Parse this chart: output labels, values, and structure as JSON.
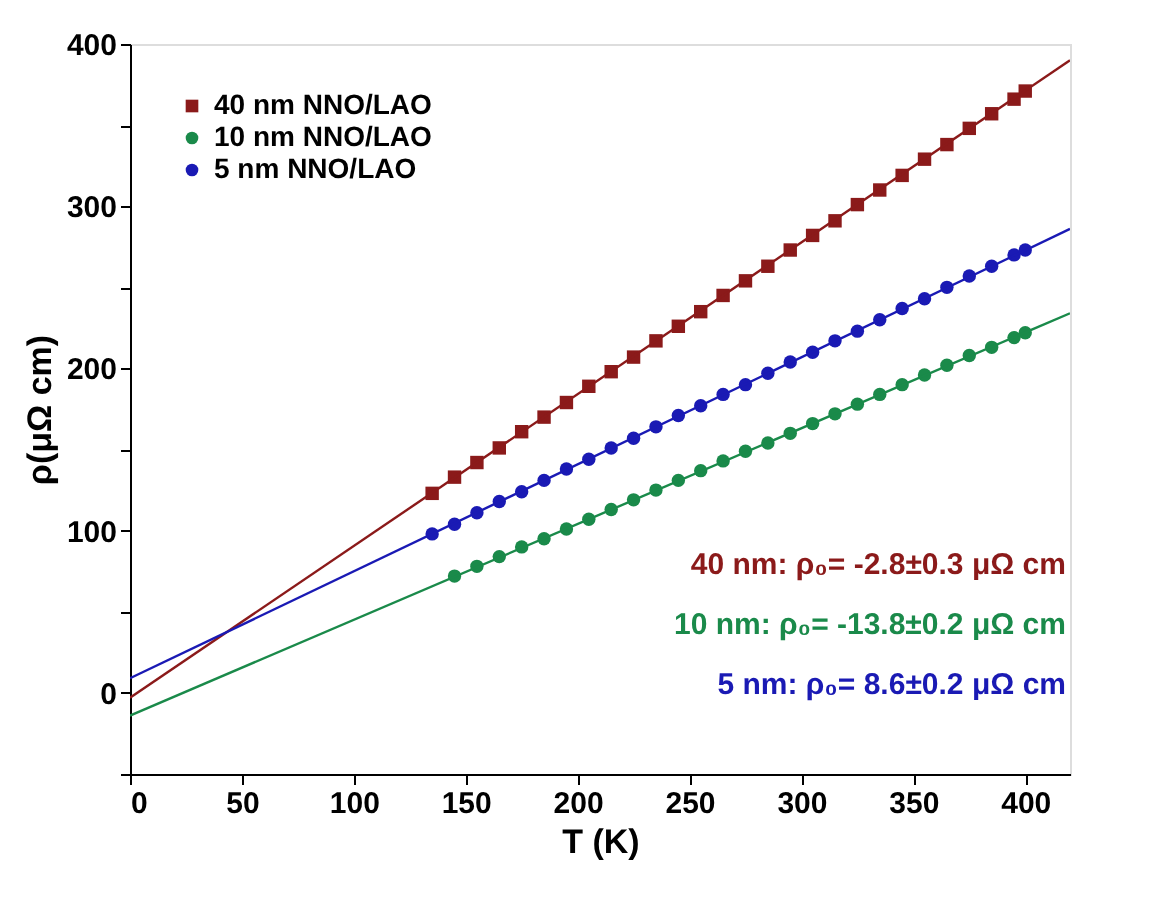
{
  "chart_data": {
    "type": "scatter",
    "xlabel": "T (K)",
    "ylabel": "ρ(μΩ cm)",
    "xlim": [
      0,
      420
    ],
    "ylim": [
      -50,
      400
    ],
    "xticks": [
      0,
      50,
      100,
      150,
      200,
      250,
      300,
      350,
      400
    ],
    "yticks": [
      {
        "value": -50,
        "label": null
      },
      0,
      {
        "value": 50,
        "label": null
      },
      100,
      {
        "value": 150,
        "label": null
      },
      200,
      {
        "value": 250,
        "label": null
      },
      300,
      {
        "value": 350,
        "label": null
      },
      400
    ],
    "grid": false,
    "legend": "top left",
    "series": [
      {
        "name": "40 nm NNO/LAO",
        "color": "#8b1a1a",
        "marker": "square",
        "x": [
          135,
          145,
          155,
          165,
          175,
          185,
          195,
          205,
          215,
          225,
          235,
          245,
          255,
          265,
          275,
          285,
          295,
          305,
          315,
          325,
          335,
          345,
          355,
          365,
          375,
          385,
          395,
          400
        ],
        "values": [
          123,
          133,
          142,
          151,
          161,
          170,
          179,
          189,
          198,
          207,
          217,
          226,
          235,
          245,
          254,
          263,
          273,
          282,
          291,
          301,
          310,
          319,
          329,
          338,
          348,
          357,
          366,
          371
        ]
      },
      {
        "name": "10 nm NNO/LAO",
        "color": "#1a8a4a",
        "marker": "circle",
        "x": [
          145,
          155,
          165,
          175,
          185,
          195,
          205,
          215,
          225,
          235,
          245,
          255,
          265,
          275,
          285,
          295,
          305,
          315,
          325,
          335,
          345,
          355,
          365,
          375,
          385,
          395,
          400
        ],
        "values": [
          72,
          78,
          84,
          90,
          95,
          101,
          107,
          113,
          119,
          125,
          131,
          137,
          143,
          149,
          154,
          160,
          166,
          172,
          178,
          184,
          190,
          196,
          202,
          208,
          213,
          219,
          222
        ]
      },
      {
        "name": "5 nm NNO/LAO",
        "color": "#1a1ab4",
        "marker": "circle",
        "x": [
          135,
          145,
          155,
          165,
          175,
          185,
          195,
          205,
          215,
          225,
          235,
          245,
          255,
          265,
          275,
          285,
          295,
          305,
          315,
          325,
          335,
          345,
          355,
          365,
          375,
          385,
          395,
          400
        ],
        "values": [
          98,
          104,
          111,
          118,
          124,
          131,
          138,
          144,
          151,
          157,
          164,
          171,
          177,
          184,
          190,
          197,
          204,
          210,
          217,
          223,
          230,
          237,
          243,
          250,
          257,
          263,
          270,
          273
        ]
      },
      {
        "type": "line",
        "color": "#8b1a1a",
        "x": [
          0,
          420
        ],
        "values": [
          -3,
          390
        ]
      },
      {
        "type": "line",
        "color": "#1a8a4a",
        "x": [
          0,
          420
        ],
        "values": [
          -14,
          234
        ]
      },
      {
        "type": "line",
        "color": "#1a1ab4",
        "x": [
          0,
          420
        ],
        "values": [
          9,
          286
        ]
      }
    ],
    "annotations": [
      "40 nm: ρ₀= -2.8±0.3 μΩ cm",
      "10 nm: ρ₀= -13.8±0.2 μΩ cm",
      "5 nm: ρ₀= 8.6±0.2 μΩ cm"
    ]
  }
}
